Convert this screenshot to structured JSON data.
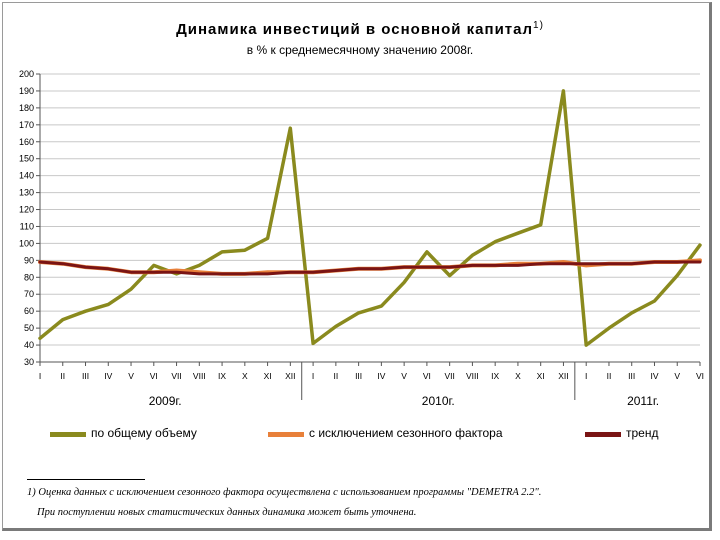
{
  "title": "Динамика инвестиций в основной капитал",
  "title_sup": "1)",
  "subtitle": "в % к среднемесячному значению 2008г.",
  "footnote": {
    "line1": "1) Оценка данных с исключением сезонного фактора осуществлена с использованием программы \"DEMETRA 2.2\".",
    "line2": "При поступлении новых статистических данных динамика может быть уточнена."
  },
  "chart_data": {
    "type": "line",
    "x": [
      "I",
      "II",
      "III",
      "IV",
      "V",
      "VI",
      "VII",
      "VIII",
      "IX",
      "X",
      "XI",
      "XII",
      "I",
      "II",
      "III",
      "IV",
      "V",
      "VI",
      "VII",
      "VIII",
      "IX",
      "X",
      "XI",
      "XII",
      "I",
      "II",
      "III",
      "IV",
      "V",
      "VI"
    ],
    "year_labels": [
      "2009г.",
      "2010г.",
      "2011г."
    ],
    "ylim": [
      30,
      200
    ],
    "yticks": [
      30,
      40,
      50,
      60,
      70,
      80,
      90,
      100,
      110,
      120,
      130,
      140,
      150,
      160,
      170,
      180,
      190,
      200
    ],
    "grid": true,
    "legend_position": "bottom",
    "series": [
      {
        "name": "по общему объему",
        "color": "#8a8a1e",
        "values": [
          44,
          55,
          60,
          64,
          73,
          87,
          82,
          87,
          95,
          96,
          103,
          168,
          41,
          51,
          59,
          63,
          77,
          95,
          81,
          93,
          101,
          106,
          111,
          190,
          40,
          50,
          59,
          66,
          81,
          99
        ]
      },
      {
        "name": "с исключением сезонного фактора",
        "color": "#e8803a",
        "values": [
          89,
          88,
          86,
          85,
          83,
          83,
          84,
          83,
          82,
          82,
          83,
          83,
          83,
          84,
          85,
          85,
          86,
          86,
          86,
          87,
          87,
          88,
          88,
          89,
          87,
          88,
          88,
          89,
          89,
          90
        ]
      },
      {
        "name": "тренд",
        "color": "#7a1414",
        "values": [
          89,
          88,
          86,
          85,
          83,
          83,
          83,
          82,
          82,
          82,
          82,
          83,
          83,
          84,
          85,
          85,
          86,
          86,
          86,
          87,
          87,
          87,
          88,
          88,
          88,
          88,
          88,
          89,
          89,
          89
        ]
      }
    ]
  }
}
